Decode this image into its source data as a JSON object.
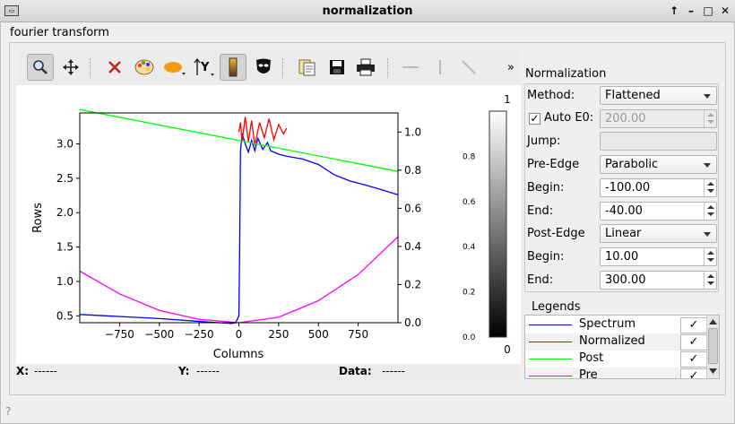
{
  "window": {
    "title": "normalization",
    "controls": [
      "↑",
      "–",
      "□",
      "✕"
    ]
  },
  "tab_label": "fourier transform",
  "toolbar": {
    "overflow": "»",
    "icons": [
      "zoom-icon",
      "pan-icon",
      "clear-icon",
      "palette-icon",
      "ellipse-roi-icon",
      "y-axis-icon",
      "colorbar-icon",
      "mask-icon",
      "copy-icon",
      "save-icon",
      "print-icon",
      "hline-icon",
      "vline-icon",
      "diagonal-line-icon"
    ]
  },
  "chart_data": {
    "type": "line",
    "xlabel": "Columns",
    "ylabel": "Rows",
    "xlim": [
      -1000,
      1000
    ],
    "ylim_left": [
      0.4,
      3.45
    ],
    "ylim_right": [
      0.0,
      1.1
    ],
    "x_ticks": [
      "−750",
      "−500",
      "−250",
      "0",
      "250",
      "500",
      "750"
    ],
    "y_ticks_left": [
      "0.5",
      "1.0",
      "1.5",
      "2.0",
      "2.5",
      "3.0"
    ],
    "y_ticks_right": [
      "0.0",
      "0.2",
      "0.4",
      "0.6",
      "0.8",
      "1.0"
    ],
    "colorbar": {
      "top_label": "1",
      "bottom_label": "0",
      "ticks": [
        "0.8",
        "0.6",
        "0.4",
        "0.2",
        "0.0"
      ]
    },
    "series": [
      {
        "name": "Spectrum",
        "color": "#0000ff",
        "x": [
          -1000,
          -500,
          -200,
          -50,
          -20,
          0,
          5,
          10,
          20,
          40,
          60,
          80,
          100,
          120,
          150,
          180,
          200,
          250,
          300,
          400,
          500,
          600,
          700,
          800,
          900,
          1000
        ],
        "y": [
          0.52,
          0.46,
          0.41,
          0.39,
          0.4,
          0.5,
          1.5,
          2.9,
          3.15,
          3.0,
          2.88,
          3.05,
          2.9,
          3.08,
          2.92,
          3.02,
          2.9,
          2.85,
          2.82,
          2.78,
          2.7,
          2.55,
          2.46,
          2.4,
          2.33,
          2.26
        ]
      },
      {
        "name": "Normalized",
        "color": "#ff0000",
        "x": [
          0,
          10,
          20,
          40,
          60,
          80,
          100,
          130,
          160,
          190,
          220,
          250,
          280,
          300
        ],
        "y": [
          1.0,
          1.05,
          0.95,
          1.08,
          0.95,
          1.06,
          0.93,
          1.05,
          0.97,
          1.07,
          0.96,
          1.04,
          0.99,
          1.02
        ]
      },
      {
        "name": "Post",
        "color": "#00ff00",
        "x": [
          -1000,
          1000
        ],
        "y": [
          3.5,
          2.6
        ]
      },
      {
        "name": "Pre",
        "color": "#ff00ff",
        "x": [
          -1000,
          -750,
          -500,
          -250,
          0,
          250,
          500,
          750,
          1000
        ],
        "y": [
          1.15,
          0.82,
          0.58,
          0.45,
          0.4,
          0.48,
          0.72,
          1.1,
          1.65
        ]
      }
    ]
  },
  "status_bar": {
    "x_label": "X:",
    "x_value": "------",
    "y_label": "Y:",
    "y_value": "------",
    "data_label": "Data:",
    "data_value": "------"
  },
  "normalization": {
    "title": "Normalization",
    "method_label": "Method:",
    "method_value": "Flattened",
    "auto_e0_label": "Auto E0:",
    "auto_e0_checked": "✓",
    "auto_e0_value": "200.00",
    "jump_label": "Jump:",
    "pre_edge_label": "Pre-Edge",
    "pre_edge_value": "Parabolic",
    "pre_begin_label": "Begin:",
    "pre_begin_value": "-100.00",
    "pre_end_label": "End:",
    "pre_end_value": "-40.00",
    "post_edge_label": "Post-Edge",
    "post_edge_value": "Linear",
    "post_begin_label": "Begin:",
    "post_begin_value": "10.00",
    "post_end_label": "End:",
    "post_end_value": "300.00"
  },
  "legends": {
    "title": "Legends",
    "items": [
      {
        "name": "Spectrum",
        "color": "#0000ff",
        "check": "✓"
      },
      {
        "name": "Normalized",
        "color": "#ff0000",
        "check": "✓"
      },
      {
        "name": "Post",
        "color": "#00ff00",
        "check": "✓"
      },
      {
        "name": "Pre",
        "color": "#ff00ff",
        "check": "✓"
      }
    ]
  },
  "help_icon": "?"
}
